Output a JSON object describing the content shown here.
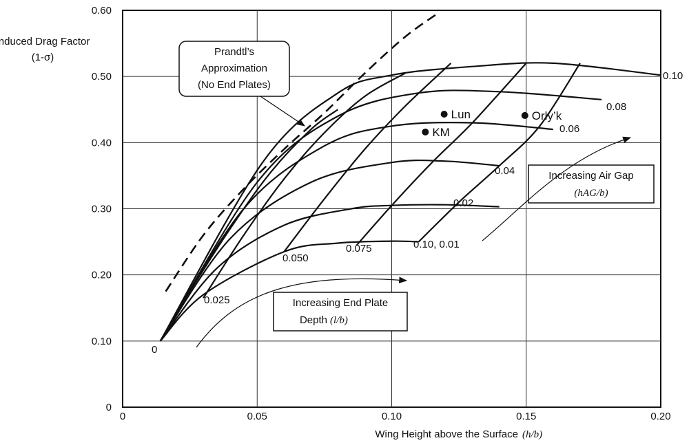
{
  "chart_data": {
    "type": "line",
    "xlabel": "Wing Height above the Surface",
    "xlabel_symbol": "(h/b)",
    "ylabel_line1": "Induced Drag Factor",
    "ylabel_line2": "(1-σ)",
    "xlim": [
      0,
      0.2
    ],
    "ylim": [
      0,
      0.6
    ],
    "x_ticks": [
      "0",
      "0.05",
      "0.10",
      "0.15",
      "0.20"
    ],
    "y_ticks": [
      "0",
      "0.10",
      "0.20",
      "0.30",
      "0.40",
      "0.50",
      "0.60"
    ],
    "x_tick_values": [
      0,
      0.05,
      0.1,
      0.15,
      0.2
    ],
    "y_tick_values": [
      0,
      0.1,
      0.2,
      0.3,
      0.4,
      0.5,
      0.6
    ],
    "grid": true,
    "prandtl_curve": {
      "x": [
        0.016,
        0.03,
        0.045,
        0.06,
        0.075,
        0.09,
        0.105,
        0.117
      ],
      "y": [
        0.175,
        0.26,
        0.33,
        0.39,
        0.445,
        0.505,
        0.56,
        0.595
      ]
    },
    "end_plate_curves": [
      {
        "label": "0",
        "x": [
          0.014,
          0.025,
          0.04,
          0.055,
          0.07,
          0.08
        ],
        "y": [
          0.1,
          0.175,
          0.27,
          0.355,
          0.42,
          0.45
        ]
      },
      {
        "label": "0.025",
        "x": [
          0.03,
          0.045,
          0.06,
          0.075,
          0.09,
          0.105
        ],
        "y": [
          0.165,
          0.26,
          0.345,
          0.415,
          0.47,
          0.505
        ]
      },
      {
        "label": "0.050",
        "x": [
          0.06,
          0.075,
          0.09,
          0.105,
          0.122
        ],
        "y": [
          0.235,
          0.315,
          0.39,
          0.455,
          0.52
        ]
      },
      {
        "label": "0.075",
        "x": [
          0.087,
          0.1,
          0.115,
          0.13,
          0.15
        ],
        "y": [
          0.245,
          0.305,
          0.37,
          0.43,
          0.52
        ]
      },
      {
        "label": "0.10, 0.01",
        "x": [
          0.11,
          0.125,
          0.14,
          0.155,
          0.17
        ],
        "y": [
          0.25,
          0.31,
          0.365,
          0.425,
          0.52
        ]
      }
    ],
    "air_gap_curves": [
      {
        "label": "0.01",
        "x": [
          0.014,
          0.03,
          0.06,
          0.08,
          0.1,
          0.11
        ],
        "y": [
          0.1,
          0.17,
          0.235,
          0.248,
          0.251,
          0.25
        ]
      },
      {
        "label": "0.02",
        "x": [
          0.014,
          0.035,
          0.06,
          0.085,
          0.1,
          0.12,
          0.14
        ],
        "y": [
          0.1,
          0.21,
          0.275,
          0.3,
          0.305,
          0.306,
          0.303
        ]
      },
      {
        "label": "0.04",
        "x": [
          0.014,
          0.04,
          0.07,
          0.1,
          0.12,
          0.14
        ],
        "y": [
          0.1,
          0.255,
          0.34,
          0.37,
          0.372,
          0.365
        ]
      },
      {
        "label": "0.06",
        "x": [
          0.014,
          0.045,
          0.075,
          0.1,
          0.13,
          0.16
        ],
        "y": [
          0.1,
          0.3,
          0.395,
          0.425,
          0.43,
          0.42
        ]
      },
      {
        "label": "0.08",
        "x": [
          0.014,
          0.05,
          0.08,
          0.11,
          0.14,
          0.178
        ],
        "y": [
          0.1,
          0.34,
          0.44,
          0.475,
          0.477,
          0.465
        ]
      },
      {
        "label": "0.10",
        "x": [
          0.014,
          0.052,
          0.08,
          0.1,
          0.13,
          0.16,
          0.2
        ],
        "y": [
          0.1,
          0.37,
          0.475,
          0.502,
          0.515,
          0.52,
          0.502
        ]
      }
    ],
    "points": [
      {
        "name": "Lun",
        "x": 0.1195,
        "y": 0.443
      },
      {
        "name": "KM",
        "x": 0.1125,
        "y": 0.416
      },
      {
        "name": "Orly’k",
        "x": 0.1495,
        "y": 0.441
      }
    ],
    "annotations": {
      "prandtl_line1": "Prandtl’s",
      "prandtl_line2": "Approximation",
      "prandtl_line3": "(No End Plates)",
      "airgap_line1": "Increasing Air Gap",
      "airgap_symbol": "(hAG/b)",
      "endplate_line1": "Increasing End Plate",
      "endplate_line2": "Depth",
      "endplate_symbol": "(l/b)"
    }
  }
}
